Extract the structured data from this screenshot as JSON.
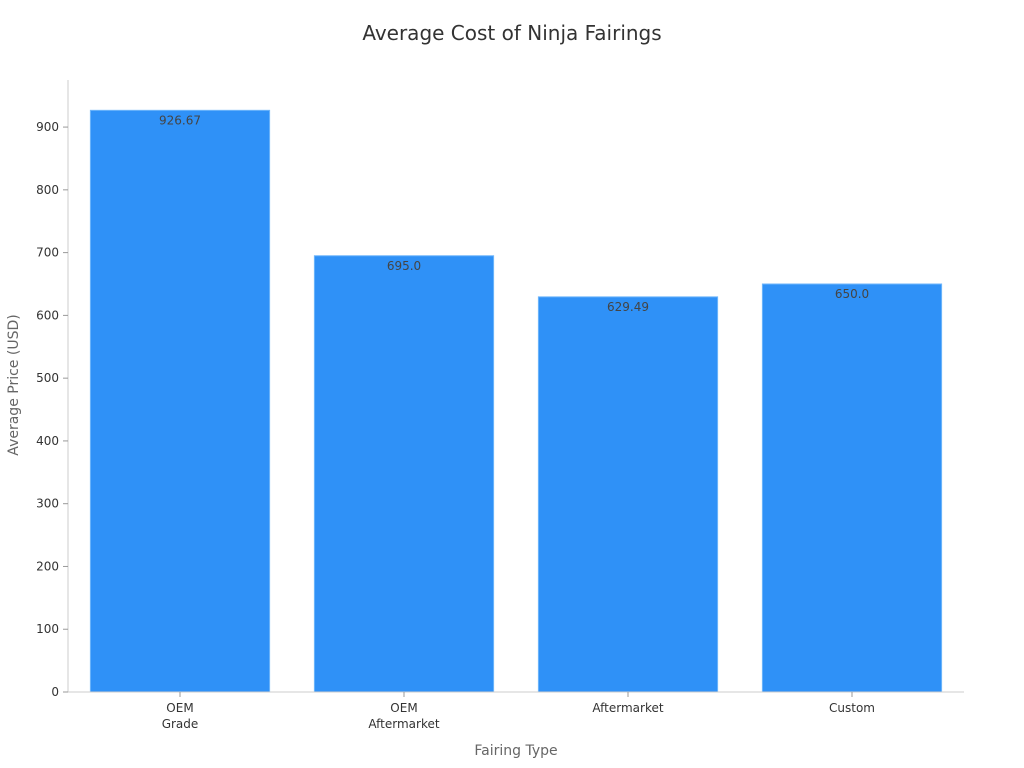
{
  "chart_data": {
    "type": "bar",
    "title": "Average Cost of Ninja Fairings",
    "xlabel": "Fairing Type",
    "ylabel": "Average Price (USD)",
    "categories": [
      [
        "OEM",
        "Grade"
      ],
      [
        "OEM",
        "Aftermarket"
      ],
      [
        "Aftermarket"
      ],
      [
        "Custom"
      ]
    ],
    "values": [
      926.67,
      695.0,
      629.49,
      650.0
    ],
    "value_labels": [
      "926.67",
      "695.0",
      "629.49",
      "650.0"
    ],
    "ylim": [
      0,
      975
    ],
    "yticks": [
      0,
      100,
      200,
      300,
      400,
      500,
      600,
      700,
      800,
      900
    ],
    "grid": false,
    "legend": "none",
    "colors": {
      "bar": "#2f91f7",
      "bar_edge": "#6fb6fb"
    }
  }
}
